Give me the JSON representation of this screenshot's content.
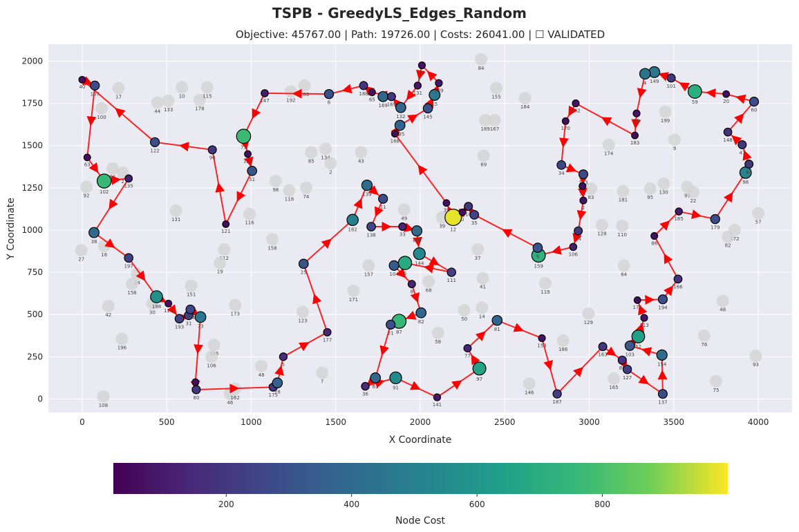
{
  "chart_data": {
    "type": "scatter",
    "title": "TSPB - GreedyLS_Edges_Random",
    "subtitle": "Objective: 45767.00 | Path: 19726.00 | Costs: 26041.00 | ☐ VALIDATED",
    "xlabel": "X Coordinate",
    "ylabel": "Y Coordinate",
    "xlim": [
      -200,
      4200
    ],
    "ylim": [
      -80,
      2100
    ],
    "xticks": [
      0,
      500,
      1000,
      1500,
      2000,
      2500,
      3000,
      3500,
      4000
    ],
    "yticks": [
      0,
      250,
      500,
      750,
      1000,
      1250,
      1500,
      1750,
      2000
    ],
    "grid": true,
    "colorbar": {
      "label": "Node Cost",
      "range": [
        20,
        1000
      ],
      "ticks": [
        200,
        400,
        600,
        800
      ],
      "colormap": "viridis"
    },
    "selected_nodes": [
      {
        "id": "40",
        "x": 0,
        "y": 1890,
        "cost": 60
      },
      {
        "id": "107",
        "x": 75,
        "y": 1855,
        "cost": 280
      },
      {
        "id": "63",
        "x": 30,
        "y": 1430,
        "cost": 60
      },
      {
        "id": "102",
        "x": 130,
        "y": 1290,
        "cost": 760
      },
      {
        "id": "135",
        "x": 275,
        "y": 1305,
        "cost": 120
      },
      {
        "id": "38",
        "x": 70,
        "y": 985,
        "cost": 390
      },
      {
        "id": "197",
        "x": 275,
        "y": 835,
        "cost": 240
      },
      {
        "id": "198",
        "x": 440,
        "y": 605,
        "cost": 570
      },
      {
        "id": "117",
        "x": 510,
        "y": 565,
        "cost": 70
      },
      {
        "id": "193",
        "x": 575,
        "y": 475,
        "cost": 240
      },
      {
        "id": "31",
        "x": 630,
        "y": 495,
        "cost": 240
      },
      {
        "id": "164",
        "x": 640,
        "y": 530,
        "cost": 260
      },
      {
        "id": "73",
        "x": 700,
        "y": 485,
        "cost": 450
      },
      {
        "id": "105",
        "x": 670,
        "y": 100,
        "cost": 60
      },
      {
        "id": "80",
        "x": 675,
        "y": 55,
        "cost": 200
      },
      {
        "id": "175",
        "x": 1130,
        "y": 70,
        "cost": 200
      },
      {
        "id": "78",
        "x": 1155,
        "y": 95,
        "cost": 370
      },
      {
        "id": "5",
        "x": 1190,
        "y": 250,
        "cost": 160
      },
      {
        "id": "177",
        "x": 1450,
        "y": 395,
        "cost": 140
      },
      {
        "id": "25",
        "x": 1310,
        "y": 800,
        "cost": 310
      },
      {
        "id": "182",
        "x": 1600,
        "y": 1060,
        "cost": 500
      },
      {
        "id": "139",
        "x": 1685,
        "y": 1265,
        "cost": 420
      },
      {
        "id": "11",
        "x": 1780,
        "y": 1185,
        "cost": 280
      },
      {
        "id": "138",
        "x": 1710,
        "y": 1020,
        "cost": 250
      },
      {
        "id": "33",
        "x": 1895,
        "y": 1020,
        "cost": 140
      },
      {
        "id": "160",
        "x": 1980,
        "y": 995,
        "cost": 400
      },
      {
        "id": "144",
        "x": 1995,
        "y": 860,
        "cost": 540
      },
      {
        "id": "111",
        "x": 2185,
        "y": 750,
        "cost": 230
      },
      {
        "id": "6",
        "x": 1910,
        "y": 805,
        "cost": 690
      },
      {
        "id": "104",
        "x": 1845,
        "y": 790,
        "cost": 340
      },
      {
        "id": "8",
        "x": 1950,
        "y": 680,
        "cost": 130
      },
      {
        "id": "82",
        "x": 2005,
        "y": 510,
        "cost": 380
      },
      {
        "id": "87",
        "x": 1875,
        "y": 460,
        "cost": 760
      },
      {
        "id": "21",
        "x": 1825,
        "y": 440,
        "cost": 280
      },
      {
        "id": "61",
        "x": 1735,
        "y": 125,
        "cost": 380
      },
      {
        "id": "36",
        "x": 1675,
        "y": 75,
        "cost": 160
      },
      {
        "id": "91",
        "x": 1855,
        "y": 125,
        "cost": 550
      },
      {
        "id": "141",
        "x": 2100,
        "y": 10,
        "cost": 90
      },
      {
        "id": "97",
        "x": 2350,
        "y": 180,
        "cost": 660
      },
      {
        "id": "77",
        "x": 2280,
        "y": 300,
        "cost": 130
      },
      {
        "id": "81",
        "x": 2455,
        "y": 465,
        "cost": 370
      },
      {
        "id": "153",
        "x": 2720,
        "y": 360,
        "cost": 80
      },
      {
        "id": "187",
        "x": 2810,
        "y": 30,
        "cost": 220
      },
      {
        "id": "163",
        "x": 3080,
        "y": 310,
        "cost": 200
      },
      {
        "id": "89",
        "x": 3195,
        "y": 230,
        "cost": 200
      },
      {
        "id": "127",
        "x": 3225,
        "y": 175,
        "cost": 230
      },
      {
        "id": "137",
        "x": 3435,
        "y": 30,
        "cost": 270
      },
      {
        "id": "154",
        "x": 3430,
        "y": 260,
        "cost": 410
      },
      {
        "id": "103",
        "x": 3240,
        "y": 315,
        "cost": 330
      },
      {
        "id": "52",
        "x": 3290,
        "y": 370,
        "cost": 640
      },
      {
        "id": "113",
        "x": 3325,
        "y": 480,
        "cost": 80
      },
      {
        "id": "176",
        "x": 3285,
        "y": 585,
        "cost": 60
      },
      {
        "id": "194",
        "x": 3435,
        "y": 590,
        "cost": 280
      },
      {
        "id": "166",
        "x": 3525,
        "y": 710,
        "cost": 190
      },
      {
        "id": "86",
        "x": 3385,
        "y": 965,
        "cost": 70
      },
      {
        "id": "185",
        "x": 3530,
        "y": 1110,
        "cost": 100
      },
      {
        "id": "179",
        "x": 3745,
        "y": 1065,
        "cost": 290
      },
      {
        "id": "98",
        "x": 3925,
        "y": 1340,
        "cost": 520
      },
      {
        "id": "64",
        "x": 3945,
        "y": 1390,
        "cost": 200
      },
      {
        "id": "47",
        "x": 3905,
        "y": 1505,
        "cost": 200
      },
      {
        "id": "148",
        "x": 3820,
        "y": 1580,
        "cost": 180
      },
      {
        "id": "60",
        "x": 3975,
        "y": 1760,
        "cost": 280
      },
      {
        "id": "20",
        "x": 3810,
        "y": 1805,
        "cost": 60
      },
      {
        "id": "59",
        "x": 3625,
        "y": 1820,
        "cost": 710
      },
      {
        "id": "101",
        "x": 3485,
        "y": 1900,
        "cost": 200
      },
      {
        "id": "149",
        "x": 3385,
        "y": 1935,
        "cost": 460
      },
      {
        "id": "4",
        "x": 3330,
        "y": 1925,
        "cost": 440
      },
      {
        "id": "70",
        "x": 3280,
        "y": 1690,
        "cost": 80
      },
      {
        "id": "183",
        "x": 3270,
        "y": 1560,
        "cost": 60
      },
      {
        "id": "162",
        "x": 2920,
        "y": 1750,
        "cost": 80
      },
      {
        "id": "170",
        "x": 2860,
        "y": 1645,
        "cost": 60
      },
      {
        "id": "34",
        "x": 2835,
        "y": 1385,
        "cost": 250
      },
      {
        "id": "133",
        "x": 2965,
        "y": 1330,
        "cost": 270
      },
      {
        "id": "53",
        "x": 2960,
        "y": 1260,
        "cost": 70
      },
      {
        "id": "2",
        "x": 2965,
        "y": 1175,
        "cost": 80
      },
      {
        "id": "24",
        "x": 2935,
        "y": 995,
        "cost": 200
      },
      {
        "id": "106",
        "x": 2905,
        "y": 900,
        "cost": 110
      },
      {
        "id": "159",
        "x": 2700,
        "y": 850,
        "cost": 720
      },
      {
        "id": "9",
        "x": 2695,
        "y": 895,
        "cost": 310
      },
      {
        "id": "35",
        "x": 2320,
        "y": 1090,
        "cost": 250
      },
      {
        "id": "10",
        "x": 2285,
        "y": 1140,
        "cost": 200
      },
      {
        "id": "12",
        "x": 2195,
        "y": 1075,
        "cost": 980
      },
      {
        "id": "0",
        "x": 2250,
        "y": 1105,
        "cost": 60
      },
      {
        "id": "39",
        "x": 2155,
        "y": 1160,
        "cost": 60
      },
      {
        "id": "168",
        "x": 1850,
        "y": 1570,
        "cost": 60
      },
      {
        "id": "195",
        "x": 1880,
        "y": 1620,
        "cost": 380
      },
      {
        "id": "145",
        "x": 2045,
        "y": 1720,
        "cost": 300
      },
      {
        "id": "15",
        "x": 2085,
        "y": 1800,
        "cost": 460
      },
      {
        "id": "109",
        "x": 2110,
        "y": 1870,
        "cost": 90
      },
      {
        "id": "70b",
        "x": 2010,
        "y": 1975,
        "cost": 80
      },
      {
        "id": "131",
        "x": 1985,
        "y": 1855,
        "cost": 90
      },
      {
        "id": "132",
        "x": 1885,
        "y": 1725,
        "cost": 380
      },
      {
        "id": "169",
        "x": 1780,
        "y": 1790,
        "cost": 390
      },
      {
        "id": "188",
        "x": 1665,
        "y": 1855,
        "cost": 200
      },
      {
        "id": "65",
        "x": 1715,
        "y": 1815,
        "cost": 70
      },
      {
        "id": "169b",
        "x": 1830,
        "y": 1790,
        "cost": 200
      },
      {
        "id": "6b",
        "x": 1460,
        "y": 1805,
        "cost": 290
      },
      {
        "id": "147",
        "x": 1080,
        "y": 1810,
        "cost": 110
      },
      {
        "id": "71",
        "x": 955,
        "y": 1555,
        "cost": 770
      },
      {
        "id": "120",
        "x": 980,
        "y": 1450,
        "cost": 60
      },
      {
        "id": "51",
        "x": 1005,
        "y": 1350,
        "cost": 310
      },
      {
        "id": "121",
        "x": 850,
        "y": 1035,
        "cost": 60
      },
      {
        "id": "90",
        "x": 770,
        "y": 1475,
        "cost": 200
      },
      {
        "id": "122",
        "x": 430,
        "y": 1520,
        "cost": 280
      }
    ],
    "route_order": [
      "40",
      "107",
      "63",
      "102",
      "135",
      "38",
      "197",
      "198",
      "117",
      "193",
      "31",
      "164",
      "73",
      "105",
      "80",
      "175",
      "78",
      "5",
      "177",
      "25",
      "182",
      "139",
      "11",
      "138",
      "33",
      "160",
      "144",
      "111",
      "6",
      "104",
      "8",
      "82",
      "87",
      "21",
      "61",
      "36",
      "91",
      "141",
      "97",
      "77",
      "81",
      "153",
      "187",
      "163",
      "89",
      "127",
      "137",
      "154",
      "103",
      "52",
      "113",
      "176",
      "194",
      "166",
      "86",
      "185",
      "179",
      "98",
      "64",
      "47",
      "148",
      "60",
      "20",
      "59",
      "101",
      "149",
      "4",
      "70",
      "183",
      "162",
      "170",
      "34",
      "133",
      "53",
      "2",
      "24",
      "106",
      "159",
      "9",
      "35",
      "10",
      "0",
      "12",
      "39",
      "168",
      "195",
      "145",
      "15",
      "109",
      "70b",
      "131",
      "132",
      "169b",
      "65",
      "188",
      "6b",
      "147",
      "71",
      "120",
      "51",
      "121",
      "90",
      "122",
      "40"
    ],
    "unselected_nodes": [
      {
        "id": "17",
        "x": 215,
        "y": 1840
      },
      {
        "id": "100",
        "x": 115,
        "y": 1720
      },
      {
        "id": "44",
        "x": 445,
        "y": 1755
      },
      {
        "id": "133b",
        "x": 510,
        "y": 1765
      },
      {
        "id": "10b",
        "x": 590,
        "y": 1845
      },
      {
        "id": "178",
        "x": 695,
        "y": 1770
      },
      {
        "id": "115",
        "x": 740,
        "y": 1845
      },
      {
        "id": "192",
        "x": 1235,
        "y": 1820
      },
      {
        "id": "186",
        "x": 1315,
        "y": 1855
      },
      {
        "id": "84",
        "x": 2360,
        "y": 2010
      },
      {
        "id": "155",
        "x": 2450,
        "y": 1840
      },
      {
        "id": "184",
        "x": 2620,
        "y": 1780
      },
      {
        "id": "189",
        "x": 2385,
        "y": 1650
      },
      {
        "id": "167",
        "x": 2440,
        "y": 1650
      },
      {
        "id": "199",
        "x": 3450,
        "y": 1700
      },
      {
        "id": "96",
        "x": 180,
        "y": 1365
      },
      {
        "id": "2b",
        "x": 240,
        "y": 1340
      },
      {
        "id": "92",
        "x": 25,
        "y": 1255
      },
      {
        "id": "131b",
        "x": 555,
        "y": 1115
      },
      {
        "id": "85",
        "x": 1355,
        "y": 1460
      },
      {
        "id": "134",
        "x": 1440,
        "y": 1480
      },
      {
        "id": "2c",
        "x": 1470,
        "y": 1395
      },
      {
        "id": "43",
        "x": 1650,
        "y": 1460
      },
      {
        "id": "69",
        "x": 2375,
        "y": 1440
      },
      {
        "id": "174",
        "x": 3115,
        "y": 1505
      },
      {
        "id": "9b",
        "x": 3505,
        "y": 1535
      },
      {
        "id": "181",
        "x": 3200,
        "y": 1230
      },
      {
        "id": "95",
        "x": 3360,
        "y": 1245
      },
      {
        "id": "130",
        "x": 3440,
        "y": 1275
      },
      {
        "id": "99",
        "x": 3580,
        "y": 1255
      },
      {
        "id": "22",
        "x": 3615,
        "y": 1225
      },
      {
        "id": "57",
        "x": 4000,
        "y": 1100
      },
      {
        "id": "172",
        "x": 3860,
        "y": 1000
      },
      {
        "id": "82b",
        "x": 3820,
        "y": 960
      },
      {
        "id": "128",
        "x": 3075,
        "y": 1030
      },
      {
        "id": "110",
        "x": 3195,
        "y": 1025
      },
      {
        "id": "83",
        "x": 3010,
        "y": 1245
      },
      {
        "id": "49",
        "x": 1905,
        "y": 1120
      },
      {
        "id": "39b",
        "x": 2130,
        "y": 1075
      },
      {
        "id": "27",
        "x": -5,
        "y": 880
      },
      {
        "id": "16",
        "x": 130,
        "y": 905
      },
      {
        "id": "98b",
        "x": 1145,
        "y": 1290
      },
      {
        "id": "118",
        "x": 1225,
        "y": 1235
      },
      {
        "id": "74",
        "x": 1325,
        "y": 1250
      },
      {
        "id": "116",
        "x": 990,
        "y": 1095
      },
      {
        "id": "158",
        "x": 1125,
        "y": 945
      },
      {
        "id": "112",
        "x": 840,
        "y": 885
      },
      {
        "id": "19",
        "x": 815,
        "y": 805
      },
      {
        "id": "24b",
        "x": 325,
        "y": 740
      },
      {
        "id": "156",
        "x": 295,
        "y": 680
      },
      {
        "id": "30",
        "x": 415,
        "y": 565
      },
      {
        "id": "151",
        "x": 645,
        "y": 670
      },
      {
        "id": "42",
        "x": 155,
        "y": 550
      },
      {
        "id": "173",
        "x": 905,
        "y": 555
      },
      {
        "id": "196",
        "x": 235,
        "y": 355
      },
      {
        "id": "136",
        "x": 780,
        "y": 320
      },
      {
        "id": "106b",
        "x": 765,
        "y": 250
      },
      {
        "id": "48",
        "x": 1060,
        "y": 195
      },
      {
        "id": "7",
        "x": 1420,
        "y": 155
      },
      {
        "id": "123",
        "x": 1305,
        "y": 515
      },
      {
        "id": "171",
        "x": 1605,
        "y": 640
      },
      {
        "id": "157",
        "x": 1695,
        "y": 790
      },
      {
        "id": "68",
        "x": 2050,
        "y": 695
      },
      {
        "id": "37",
        "x": 2340,
        "y": 885
      },
      {
        "id": "41",
        "x": 2370,
        "y": 715
      },
      {
        "id": "119",
        "x": 2740,
        "y": 685
      },
      {
        "id": "50",
        "x": 2260,
        "y": 525
      },
      {
        "id": "14",
        "x": 2365,
        "y": 540
      },
      {
        "id": "58",
        "x": 2105,
        "y": 390
      },
      {
        "id": "146",
        "x": 2645,
        "y": 90
      },
      {
        "id": "186b",
        "x": 2845,
        "y": 345
      },
      {
        "id": "129",
        "x": 2995,
        "y": 505
      },
      {
        "id": "165",
        "x": 3145,
        "y": 120
      },
      {
        "id": "64b",
        "x": 3205,
        "y": 790
      },
      {
        "id": "48b",
        "x": 3790,
        "y": 580
      },
      {
        "id": "76",
        "x": 3680,
        "y": 375
      },
      {
        "id": "75",
        "x": 3750,
        "y": 105
      },
      {
        "id": "93",
        "x": 3985,
        "y": 255
      },
      {
        "id": "108",
        "x": 125,
        "y": 15
      },
      {
        "id": "46",
        "x": 875,
        "y": 30
      },
      {
        "id": "162b",
        "x": 905,
        "y": 60
      }
    ]
  }
}
